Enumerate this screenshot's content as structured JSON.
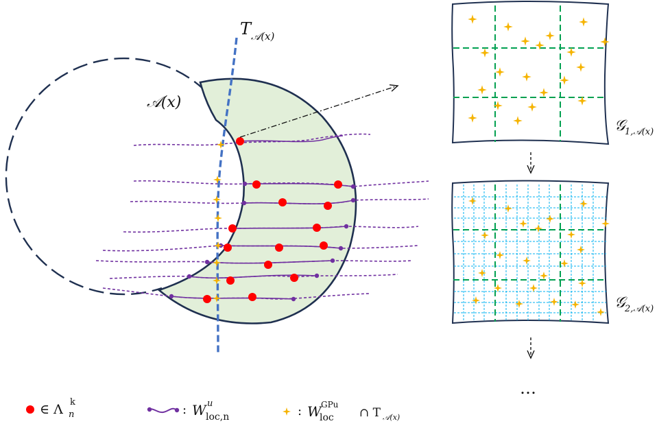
{
  "labels": {
    "tangent_T": "T",
    "tangent_sub": "𝒜(x)",
    "region_A": "𝒜(x)",
    "grid1_G": "𝒢",
    "grid1_sub": "1,𝒜(x)",
    "grid2_G": "𝒢",
    "grid2_sub": "2,𝒜(x)",
    "ellipsis": "…"
  },
  "legend": {
    "dot_text": "∈ Λ",
    "dot_sup": "k",
    "dot_sub": "n",
    "curve_colon": ":",
    "curve_W": "W",
    "curve_sup": "u",
    "curve_sub": "loc,n",
    "star_colon": ":",
    "star_W": "W",
    "star_sup": "GPu",
    "star_sub": "loc",
    "star_cap": "∩ T",
    "star_cap_sub": "𝒜(x)"
  },
  "colors": {
    "crescent_fill": "#e2efd9",
    "outline": "#1f3050",
    "tangent_line": "#4472c4",
    "curve": "#7030a0",
    "dot": "#ff0000",
    "star": "#f5b300",
    "grid_coarse": "#00a050",
    "grid_fine": "#00b0f0"
  }
}
